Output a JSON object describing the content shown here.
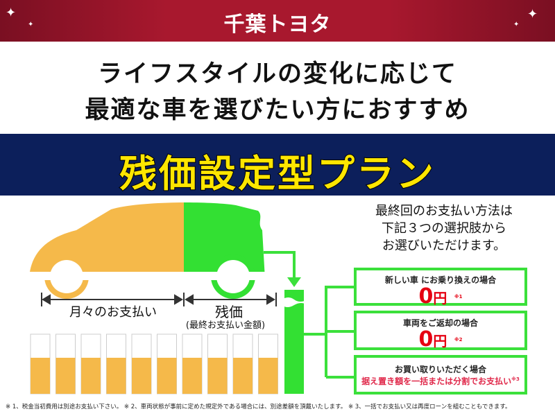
{
  "brand": {
    "logo": "千葉トヨタ"
  },
  "headline": {
    "line1": "ライフスタイルの変化に応じて",
    "line2": "最適な車を選びたい方におすすめ"
  },
  "plan_title": "残価設定型プラン",
  "diagram": {
    "monthly_label": "月々のお支払い",
    "residual_label": "残価",
    "residual_sub": "(最終お支払い金額)",
    "colors": {
      "monthly": "#f5b94a",
      "residual": "#33e033",
      "navy": "#0c1f5b",
      "title": "#ffe600",
      "price": "#e50012"
    }
  },
  "lead": {
    "line1": "最終回のお支払い方法は",
    "line2": "下記３つの選択肢から",
    "line3": "お選びいただけます。"
  },
  "options": [
    {
      "title": "新しい車 にお乗り換えの場合",
      "amount": "0",
      "unit": "円",
      "note": "※1"
    },
    {
      "title": "車両をご返却の場合",
      "amount": "0",
      "unit": "円",
      "note": "※2"
    },
    {
      "title": "お買い取りいただく場合",
      "detail": "据え置き額を一括または分割でお支払い",
      "note": "※3"
    }
  ],
  "footnote": "※ 1、税金当初費用は別途お支払い下さい。 ※ 2、車両状態が事前に定めた規定外である場合には、別途差額を頂戴いたします。 ※ 3、一括でお支払い又は再度ローンを組むこともできます。"
}
